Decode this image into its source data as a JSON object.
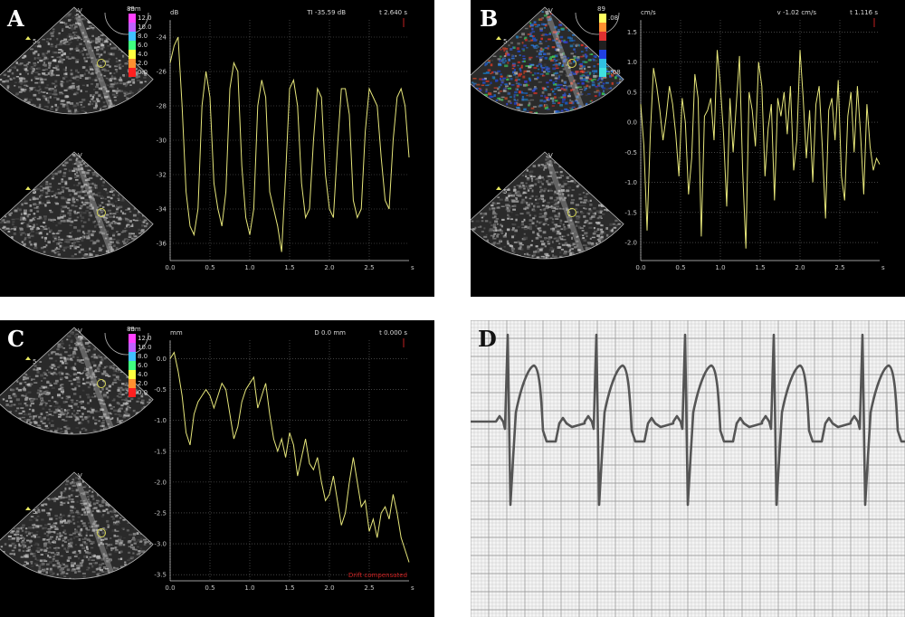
{
  "panels": [
    {
      "letter": "A",
      "top_unit": "mm",
      "top_scale_value": "89",
      "scale_values": [
        "12.0",
        "10.0",
        "8.0",
        "6.0",
        "4.0",
        "2.0",
        "0.0"
      ],
      "depth_marker": "5",
      "apex_label": "V",
      "readout_left": "TI -35.59 dB",
      "readout_right": "t 2.640 s",
      "chart_data": {
        "type": "line",
        "ylabel": "dB",
        "xlabel": "s",
        "xlim": [
          0,
          3.0
        ],
        "ylim": [
          -37,
          -23
        ],
        "yticks": [
          -24,
          -26,
          -28,
          -30,
          -32,
          -34,
          -36
        ],
        "xticks": [
          0.0,
          0.5,
          1.0,
          1.5,
          2.0,
          2.5
        ],
        "series": [
          {
            "color": "#e6e67a",
            "x": [
              0.0,
              0.05,
              0.1,
              0.15,
              0.2,
              0.25,
              0.3,
              0.35,
              0.4,
              0.45,
              0.5,
              0.55,
              0.6,
              0.65,
              0.7,
              0.75,
              0.8,
              0.85,
              0.9,
              0.95,
              1.0,
              1.05,
              1.1,
              1.15,
              1.2,
              1.25,
              1.3,
              1.35,
              1.4,
              1.45,
              1.5,
              1.55,
              1.6,
              1.65,
              1.7,
              1.75,
              1.8,
              1.85,
              1.9,
              1.95,
              2.0,
              2.05,
              2.1,
              2.15,
              2.2,
              2.25,
              2.3,
              2.35,
              2.4,
              2.45,
              2.5,
              2.55,
              2.6,
              2.65,
              2.7,
              2.75,
              2.8,
              2.85,
              2.9,
              2.95,
              3.0
            ],
            "y": [
              -25.5,
              -24.5,
              -24.0,
              -28.0,
              -33.0,
              -35.0,
              -35.5,
              -34.0,
              -28.0,
              -26.0,
              -27.5,
              -32.5,
              -34.0,
              -35.0,
              -33.0,
              -27.0,
              -25.5,
              -26.0,
              -31.5,
              -34.5,
              -35.5,
              -34.0,
              -28.0,
              -26.5,
              -27.5,
              -33.0,
              -34.0,
              -35.0,
              -36.5,
              -32.0,
              -27.0,
              -26.5,
              -28.0,
              -32.5,
              -34.5,
              -34.0,
              -30.0,
              -27.0,
              -27.5,
              -32.0,
              -34.0,
              -34.5,
              -30.5,
              -27.0,
              -27.0,
              -28.5,
              -33.5,
              -34.5,
              -34.0,
              -29.5,
              -27.0,
              -27.5,
              -28.0,
              -31.0,
              -33.5,
              -34.0,
              -30.0,
              -27.5,
              -27.0,
              -28.0,
              -31.0
            ]
          }
        ]
      }
    },
    {
      "letter": "B",
      "top_scale_value": "89",
      "scale_values": [
        ".08",
        "",
        "",
        "",
        "",
        "",
        "-.08"
      ],
      "depth_marker": "5",
      "apex_label": "V",
      "readout_left": "v -1.02 cm/s",
      "readout_right": "t 1.116 s",
      "chart_data": {
        "type": "line",
        "ylabel": "cm/s",
        "xlabel": "s",
        "xlim": [
          0,
          3.0
        ],
        "ylim": [
          -2.3,
          1.7
        ],
        "yticks": [
          1.5,
          1.0,
          0.5,
          0.0,
          -0.5,
          -1.0,
          -1.5,
          -2.0
        ],
        "xticks": [
          0.0,
          0.5,
          1.0,
          1.5,
          2.0,
          2.5
        ],
        "series": [
          {
            "color": "#e6e67a",
            "x": [
              0.0,
              0.04,
              0.08,
              0.12,
              0.16,
              0.2,
              0.24,
              0.28,
              0.32,
              0.36,
              0.4,
              0.44,
              0.48,
              0.52,
              0.56,
              0.6,
              0.64,
              0.68,
              0.72,
              0.76,
              0.8,
              0.84,
              0.88,
              0.92,
              0.96,
              1.0,
              1.04,
              1.08,
              1.12,
              1.16,
              1.2,
              1.24,
              1.28,
              1.32,
              1.36,
              1.4,
              1.44,
              1.48,
              1.52,
              1.56,
              1.6,
              1.64,
              1.68,
              1.72,
              1.76,
              1.8,
              1.84,
              1.88,
              1.92,
              1.96,
              2.0,
              2.04,
              2.08,
              2.12,
              2.16,
              2.2,
              2.24,
              2.28,
              2.32,
              2.36,
              2.4,
              2.44,
              2.48,
              2.52,
              2.56,
              2.6,
              2.64,
              2.68,
              2.72,
              2.76,
              2.8,
              2.84,
              2.88,
              2.92,
              2.96,
              3.0
            ],
            "y": [
              0.3,
              -0.4,
              -1.8,
              -0.2,
              0.9,
              0.6,
              0.2,
              -0.3,
              0.1,
              0.6,
              0.3,
              -0.2,
              -0.9,
              0.4,
              0.0,
              -1.2,
              -0.6,
              0.8,
              0.4,
              -1.9,
              0.1,
              0.2,
              0.4,
              -0.3,
              1.2,
              0.6,
              -0.2,
              -1.4,
              0.4,
              -0.5,
              0.3,
              1.1,
              -0.8,
              -2.1,
              0.5,
              0.2,
              -0.4,
              1.0,
              0.6,
              -0.9,
              -0.1,
              0.3,
              -1.3,
              0.4,
              0.1,
              0.5,
              -0.2,
              0.6,
              -0.8,
              -0.3,
              1.2,
              0.4,
              -0.6,
              0.2,
              -1.0,
              0.3,
              0.6,
              -0.4,
              -1.6,
              0.2,
              0.4,
              -0.3,
              0.7,
              -0.9,
              -1.3,
              0.1,
              0.5,
              -0.5,
              0.6,
              -0.2,
              -1.2,
              0.3,
              -0.4,
              -0.8,
              -0.6,
              -0.7
            ]
          }
        ]
      }
    },
    {
      "letter": "C",
      "top_unit": "mm",
      "top_scale_value": "89",
      "scale_values": [
        "12.0",
        "10.0",
        "8.0",
        "6.0",
        "4.0",
        "2.0",
        "0.0"
      ],
      "depth_marker": "5",
      "apex_label": "V",
      "readout_left": "D 0.0 mm",
      "readout_right": "t 0.000 s",
      "footnote": "Drift compensated",
      "chart_data": {
        "type": "line",
        "ylabel": "mm",
        "xlabel": "s",
        "xlim": [
          0,
          3.0
        ],
        "ylim": [
          -3.6,
          0.3
        ],
        "yticks": [
          0.0,
          -0.5,
          -1.0,
          -1.5,
          -2.0,
          -2.5,
          -3.0,
          -3.5
        ],
        "xticks": [
          0.0,
          0.5,
          1.0,
          1.5,
          2.0,
          2.5
        ],
        "series": [
          {
            "color": "#e6e67a",
            "x": [
              0.0,
              0.05,
              0.1,
              0.15,
              0.2,
              0.25,
              0.3,
              0.35,
              0.4,
              0.45,
              0.5,
              0.55,
              0.6,
              0.65,
              0.7,
              0.75,
              0.8,
              0.85,
              0.9,
              0.95,
              1.0,
              1.05,
              1.1,
              1.15,
              1.2,
              1.25,
              1.3,
              1.35,
              1.4,
              1.45,
              1.5,
              1.55,
              1.6,
              1.65,
              1.7,
              1.75,
              1.8,
              1.85,
              1.9,
              1.95,
              2.0,
              2.05,
              2.1,
              2.15,
              2.2,
              2.25,
              2.3,
              2.35,
              2.4,
              2.45,
              2.5,
              2.55,
              2.6,
              2.65,
              2.7,
              2.75,
              2.8,
              2.85,
              2.9,
              2.95,
              3.0
            ],
            "y": [
              0.0,
              0.1,
              -0.2,
              -0.6,
              -1.2,
              -1.4,
              -0.9,
              -0.7,
              -0.6,
              -0.5,
              -0.6,
              -0.8,
              -0.6,
              -0.4,
              -0.5,
              -0.9,
              -1.3,
              -1.1,
              -0.7,
              -0.5,
              -0.4,
              -0.3,
              -0.8,
              -0.6,
              -0.4,
              -0.9,
              -1.3,
              -1.5,
              -1.3,
              -1.6,
              -1.2,
              -1.4,
              -1.9,
              -1.6,
              -1.3,
              -1.7,
              -1.8,
              -1.6,
              -2.0,
              -2.3,
              -2.2,
              -1.9,
              -2.3,
              -2.7,
              -2.5,
              -2.0,
              -1.6,
              -2.0,
              -2.4,
              -2.3,
              -2.8,
              -2.6,
              -2.9,
              -2.5,
              -2.4,
              -2.6,
              -2.2,
              -2.5,
              -2.9,
              -3.1,
              -3.3
            ]
          }
        ]
      }
    }
  ],
  "ecg": {
    "letter": "D",
    "beats": 5
  },
  "colors": {
    "trace": "#e6e67a",
    "grid": "#6a6a6a",
    "background": "#000000",
    "ecg_grid": "#9a9a9a",
    "ecg_trace": "#555555",
    "marker_circle": "#d8d858"
  }
}
